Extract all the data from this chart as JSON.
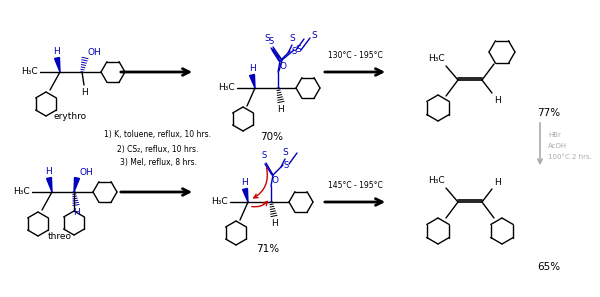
{
  "background_color": "#ffffff",
  "fig_width": 6.0,
  "fig_height": 2.97,
  "dpi": 100,
  "text_color": "#000000",
  "blue_color": "#0000bb",
  "red_color": "#cc0000",
  "gray_color": "#aaaaaa",
  "conditions": [
    "1) K, toluene, reflux, 10 hrs.",
    "2) CS₂, reflux, 10 hrs.",
    "3) MeI, reflux, 8 hrs."
  ],
  "top_temp": "130°C - 195°C",
  "bottom_temp": "145°C - 195°C",
  "top_yield1": "70%",
  "top_yield2": "77%",
  "bottom_yield1": "71%",
  "bottom_yield2": "65%",
  "hbr_conditions": [
    "HBr",
    "AcOH",
    "100°C 2 hrs."
  ],
  "label_erythro": "erythro",
  "label_threo": "threo"
}
